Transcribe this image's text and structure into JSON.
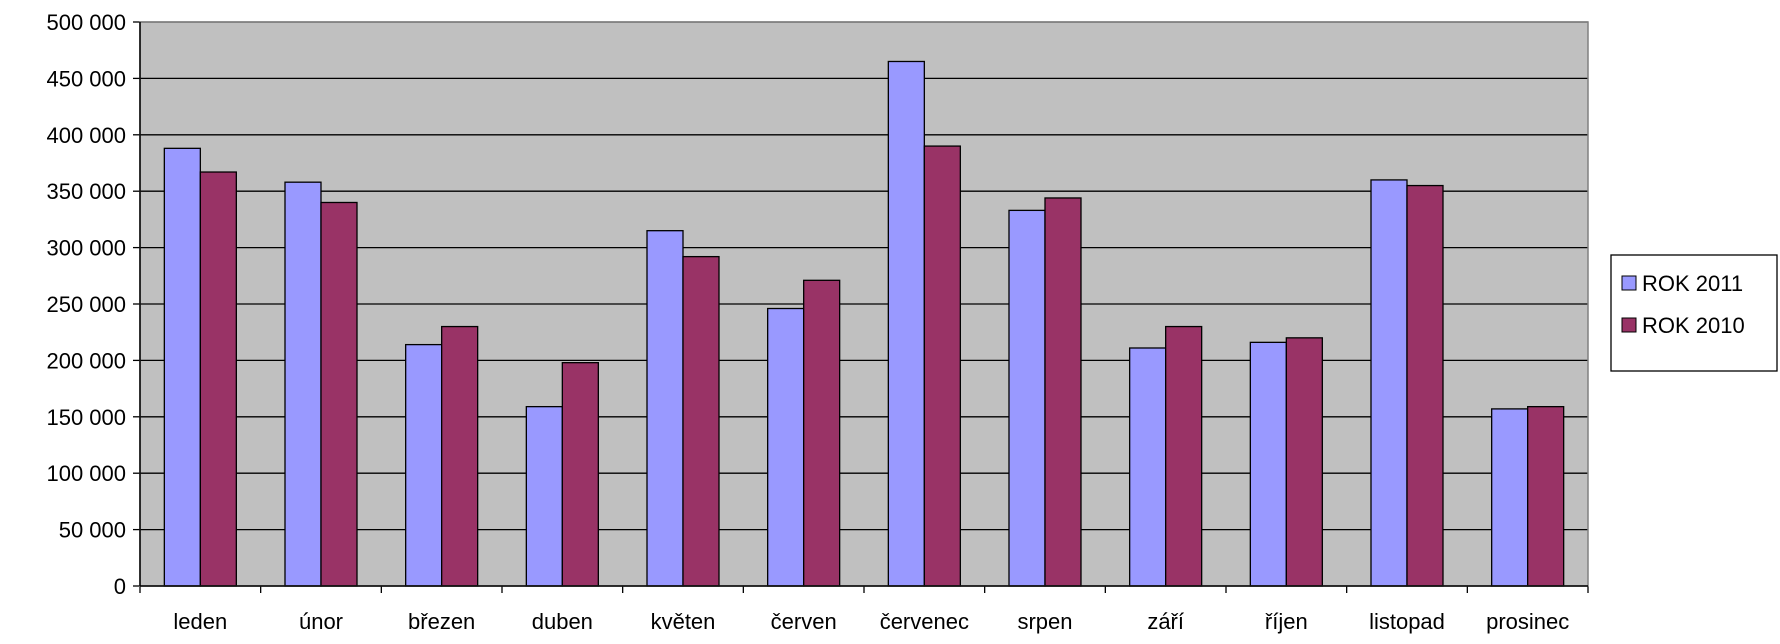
{
  "chart_data": {
    "type": "bar",
    "title": "",
    "xlabel": "",
    "ylabel": "",
    "categories": [
      "leden",
      "únor",
      "březen",
      "duben",
      "květen",
      "červen",
      "červenec",
      "srpen",
      "září",
      "říjen",
      "listopad",
      "prosinec"
    ],
    "series": [
      {
        "name": "ROK 2011",
        "color": "#9999ff",
        "values": [
          388000,
          358000,
          214000,
          159000,
          315000,
          246000,
          465000,
          333000,
          211000,
          216000,
          360000,
          157000
        ]
      },
      {
        "name": "ROK 2010",
        "color": "#993366",
        "values": [
          367000,
          340000,
          230000,
          198000,
          292000,
          271000,
          390000,
          344000,
          230000,
          220000,
          355000,
          159000
        ]
      }
    ],
    "ylim": [
      0,
      500000
    ],
    "yticks": [
      0,
      50000,
      100000,
      150000,
      200000,
      250000,
      300000,
      350000,
      400000,
      450000,
      500000
    ],
    "ytick_labels": [
      "0",
      "50 000",
      "100 000",
      "150 000",
      "200 000",
      "250 000",
      "300 000",
      "350 000",
      "400 000",
      "450 000",
      "500 000"
    ],
    "grid": true,
    "legend_position": "right",
    "plot_background": "#c0c0c0"
  }
}
